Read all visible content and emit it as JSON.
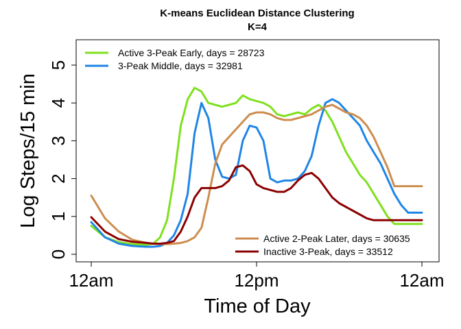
{
  "chart_data": {
    "type": "line",
    "title": "K-means Euclidean Distance Clustering",
    "subtitle": "K=4",
    "xlabel": "Time of Day",
    "ylabel": "Log Steps/15 min",
    "xlim": [
      0,
      24
    ],
    "ylim": [
      0,
      5
    ],
    "x_ticks": [
      0,
      12,
      24
    ],
    "x_tick_labels": [
      "12am",
      "12pm",
      "12am"
    ],
    "y_ticks": [
      0,
      1,
      2,
      3,
      4,
      5
    ],
    "y_tick_labels": [
      "0",
      "1",
      "2",
      "3",
      "4",
      "5"
    ],
    "grid": false,
    "x": [
      0,
      1,
      2,
      3,
      4,
      4.5,
      5,
      5.5,
      6,
      6.5,
      7,
      7.5,
      8,
      8.5,
      9,
      9.5,
      10,
      10.5,
      11,
      11.5,
      12,
      12.5,
      13,
      13.5,
      14,
      14.5,
      15,
      15.5,
      16,
      16.5,
      17,
      17.5,
      18,
      18.5,
      19,
      19.5,
      20,
      20.5,
      21,
      21.5,
      22,
      22.5,
      23,
      23.5,
      24
    ],
    "series": [
      {
        "name": "Active 3-Peak Early, days = 28723",
        "color": "#7fe01e",
        "values": [
          0.75,
          0.45,
          0.32,
          0.27,
          0.25,
          0.28,
          0.45,
          0.9,
          2.0,
          3.4,
          4.1,
          4.4,
          4.3,
          4.0,
          3.95,
          3.9,
          3.95,
          4.0,
          4.2,
          4.1,
          4.05,
          4.0,
          3.9,
          3.7,
          3.65,
          3.7,
          3.75,
          3.7,
          3.85,
          3.95,
          3.8,
          3.5,
          3.1,
          2.7,
          2.4,
          2.1,
          1.9,
          1.6,
          1.3,
          1.0,
          0.8,
          0.8,
          0.8,
          0.8,
          0.8
        ]
      },
      {
        "name": "3-Peak Middle, days = 32981",
        "color": "#1f85e5",
        "values": [
          0.85,
          0.45,
          0.28,
          0.22,
          0.2,
          0.2,
          0.22,
          0.3,
          0.5,
          0.9,
          1.6,
          3.2,
          4.0,
          3.6,
          2.5,
          2.05,
          2.0,
          2.1,
          3.0,
          3.4,
          3.35,
          3.0,
          2.0,
          1.9,
          1.95,
          1.95,
          2.0,
          2.2,
          2.6,
          3.4,
          4.0,
          4.1,
          4.0,
          3.8,
          3.6,
          3.4,
          3.0,
          2.7,
          2.4,
          2.0,
          1.6,
          1.3,
          1.1,
          1.1,
          1.1
        ]
      },
      {
        "name": "Active 2-Peak Later, days = 30635",
        "color": "#cd8c4e",
        "values": [
          1.55,
          0.95,
          0.6,
          0.38,
          0.3,
          0.28,
          0.27,
          0.27,
          0.28,
          0.3,
          0.35,
          0.45,
          0.7,
          1.5,
          2.4,
          2.9,
          3.1,
          3.3,
          3.5,
          3.7,
          3.75,
          3.75,
          3.7,
          3.6,
          3.55,
          3.55,
          3.6,
          3.65,
          3.7,
          3.8,
          3.9,
          3.95,
          3.85,
          3.75,
          3.7,
          3.6,
          3.4,
          3.1,
          2.7,
          2.3,
          1.8,
          1.8,
          1.8,
          1.8,
          1.8
        ]
      },
      {
        "name": "Inactive 3-Peak, days = 33512",
        "color": "#8b0000",
        "values": [
          0.98,
          0.6,
          0.4,
          0.33,
          0.3,
          0.28,
          0.28,
          0.3,
          0.35,
          0.6,
          1.0,
          1.5,
          1.75,
          1.75,
          1.75,
          1.8,
          1.95,
          2.3,
          2.35,
          2.2,
          1.85,
          1.75,
          1.7,
          1.65,
          1.65,
          1.75,
          1.95,
          2.1,
          2.15,
          2.0,
          1.75,
          1.5,
          1.35,
          1.25,
          1.15,
          1.05,
          0.95,
          0.9,
          0.9,
          0.9,
          0.9,
          0.9,
          0.9,
          0.9,
          0.9
        ]
      }
    ],
    "legends": [
      {
        "position": "top-left",
        "series": [
          0,
          1
        ]
      },
      {
        "position": "bottom-right",
        "series": [
          2,
          3
        ]
      }
    ]
  }
}
